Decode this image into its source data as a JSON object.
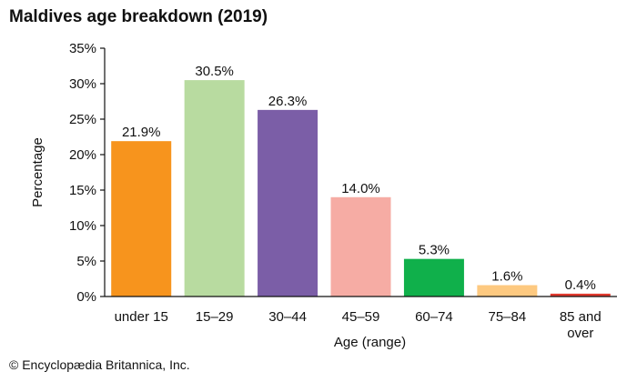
{
  "title": "Maldives age breakdown (2019)",
  "credit": "© Encyclopædia Britannica, Inc.",
  "chart_data": {
    "type": "bar",
    "title": "Maldives age breakdown (2019)",
    "xlabel": "Age (range)",
    "ylabel": "Percentage",
    "ylim": [
      0,
      35
    ],
    "yticks": [
      0,
      5,
      10,
      15,
      20,
      25,
      30,
      35
    ],
    "ytick_labels": [
      "0%",
      "5%",
      "10%",
      "15%",
      "20%",
      "25%",
      "30%",
      "35%"
    ],
    "grid": false,
    "legend": "none",
    "categories": [
      [
        "under 15"
      ],
      [
        "15–29"
      ],
      [
        "30–44"
      ],
      [
        "45–59"
      ],
      [
        "60–74"
      ],
      [
        "75–84"
      ],
      [
        "85 and",
        "over"
      ]
    ],
    "values": [
      21.9,
      30.5,
      26.3,
      14.0,
      5.3,
      1.6,
      0.4
    ],
    "value_labels": [
      "21.9%",
      "30.5%",
      "26.3%",
      "14.0%",
      "5.3%",
      "1.6%",
      "0.4%"
    ],
    "colors": [
      "#f7941d",
      "#b8dba0",
      "#7b5ea7",
      "#f6aca4",
      "#10b04b",
      "#fdc980",
      "#e03a2f"
    ]
  }
}
